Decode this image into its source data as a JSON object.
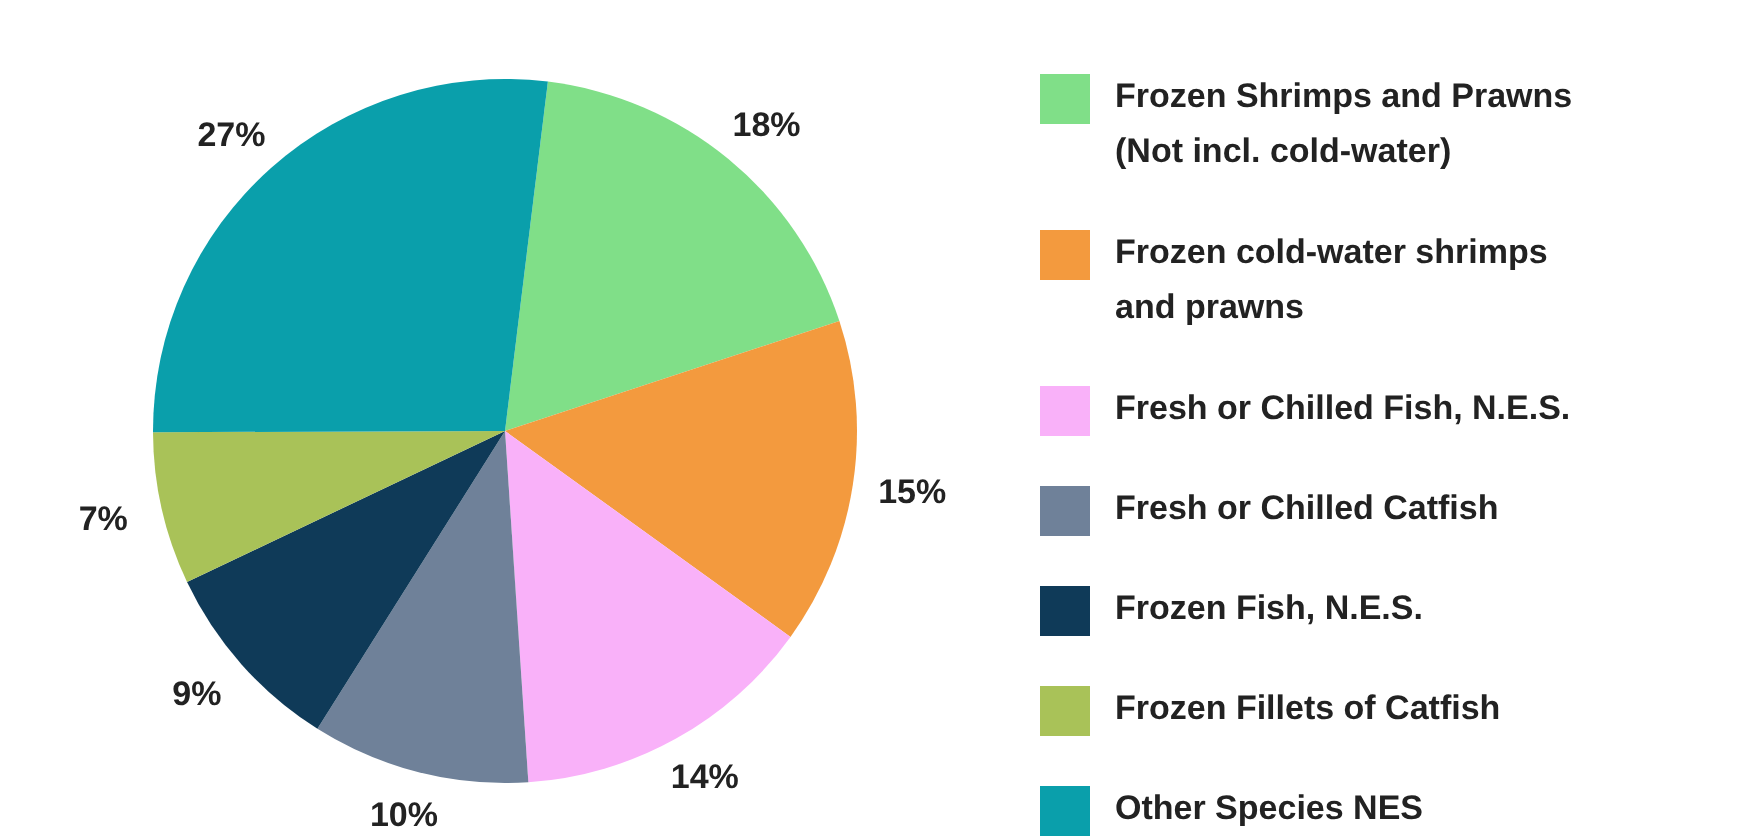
{
  "chart_data": {
    "type": "pie",
    "categories": [
      "Frozen Shrimps and Prawns\n(Not incl. cold-water)",
      "Frozen cold-water shrimps\nand prawns",
      "Fresh or Chilled Fish, N.E.S.",
      "Fresh or Chilled Catfish",
      "Frozen Fish, N.E.S.",
      "Frozen Fillets of Catfish",
      "Other Species NES"
    ],
    "values": [
      18,
      15,
      14,
      10,
      9,
      7,
      27
    ],
    "colors": [
      "#80df88",
      "#f39a3e",
      "#f9b1f9",
      "#6f8199",
      "#0f3a58",
      "#a9c258",
      "#0a9fab"
    ],
    "value_labels": [
      "18%",
      "15%",
      "14%",
      "10%",
      "9%",
      "7%",
      "27%"
    ],
    "legend": "right"
  }
}
